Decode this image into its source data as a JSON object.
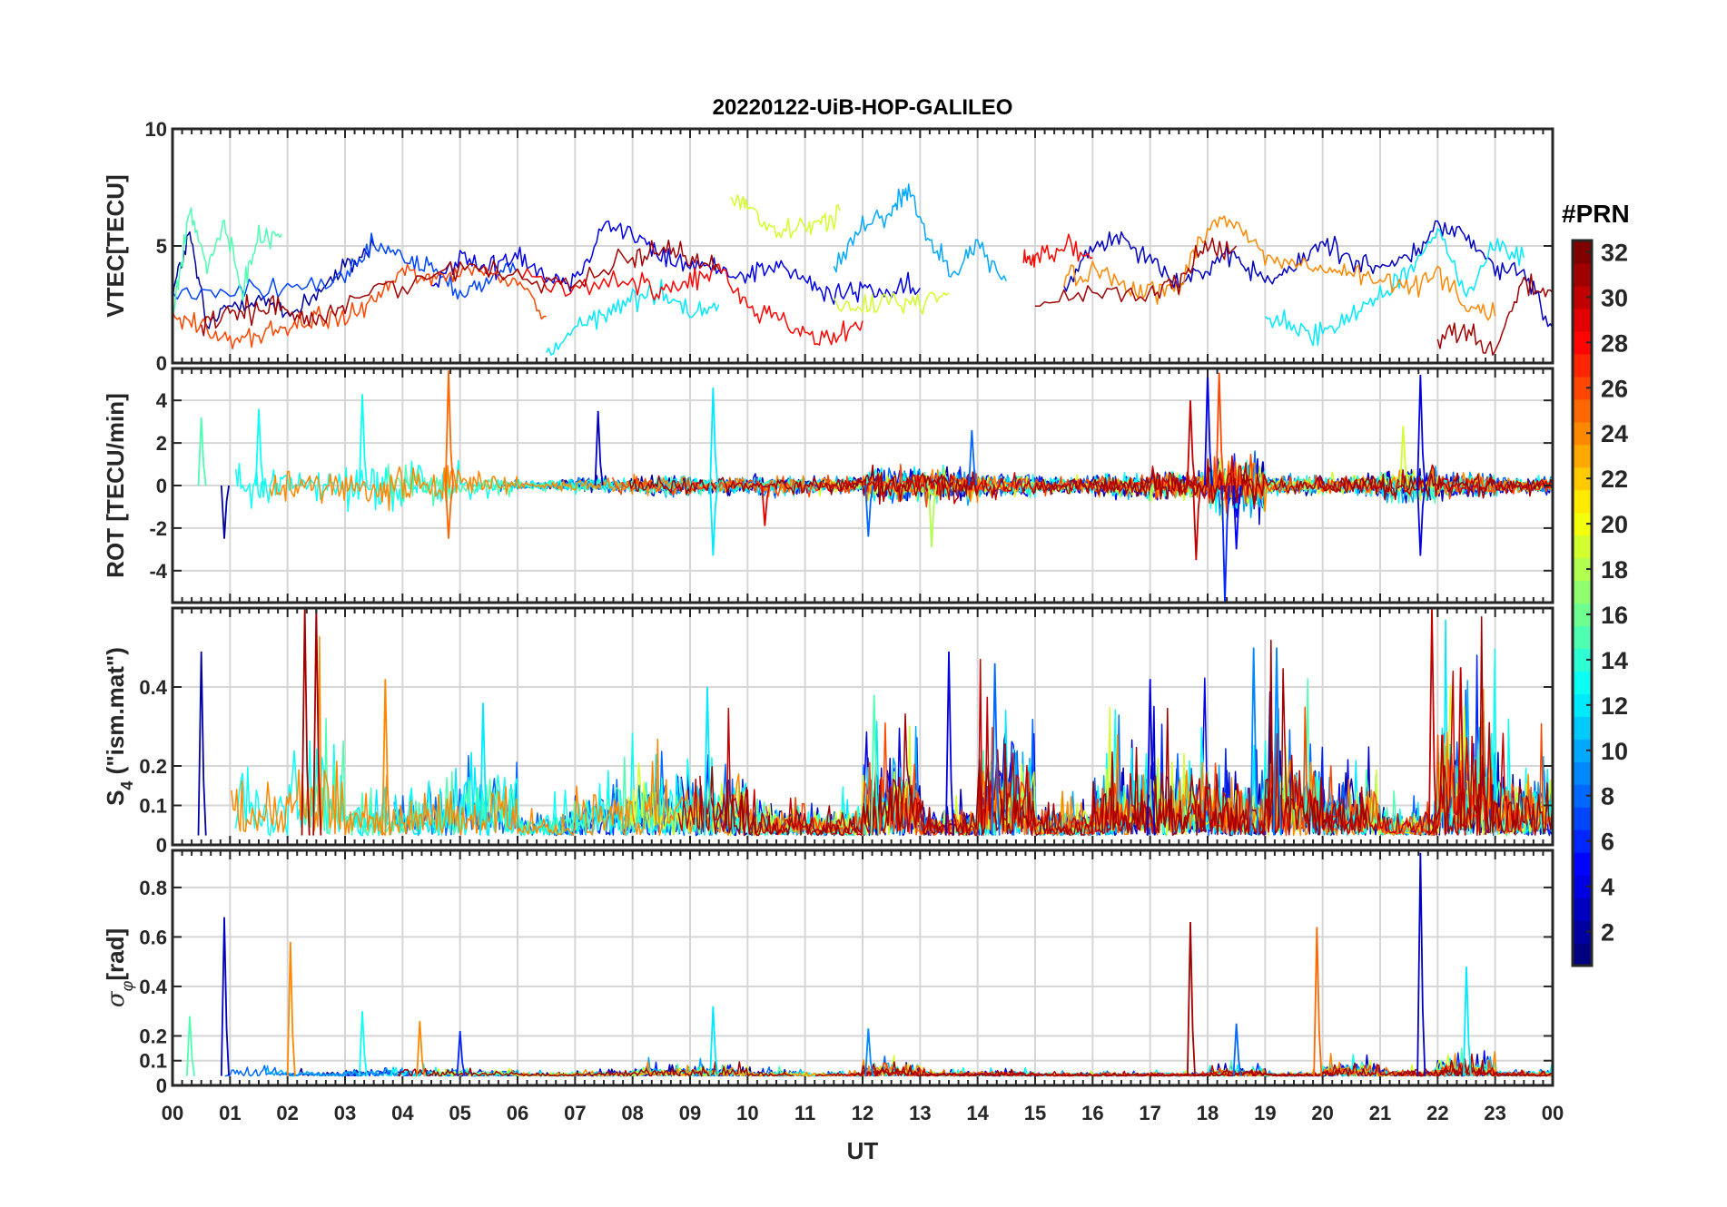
{
  "chart_data": {
    "type": "line",
    "title": "20220122-UiB-HOP-GALILEO",
    "xlabel": "UT",
    "xlim": [
      0,
      24
    ],
    "xticks": [
      0,
      1,
      2,
      3,
      4,
      5,
      6,
      7,
      8,
      9,
      10,
      11,
      12,
      13,
      14,
      15,
      16,
      17,
      18,
      19,
      20,
      21,
      22,
      23,
      24
    ],
    "xtick_labels": [
      "00",
      "01",
      "02",
      "03",
      "04",
      "05",
      "06",
      "07",
      "08",
      "09",
      "10",
      "11",
      "12",
      "13",
      "14",
      "15",
      "16",
      "17",
      "18",
      "19",
      "20",
      "21",
      "22",
      "23",
      "00"
    ],
    "grid": true,
    "colorbar": {
      "label": "#PRN",
      "range": [
        1,
        32
      ],
      "ticks": [
        2,
        4,
        6,
        8,
        10,
        12,
        14,
        16,
        18,
        20,
        22,
        24,
        26,
        28,
        30,
        32
      ],
      "colormap": "jet"
    },
    "panels": [
      {
        "name": "vtec",
        "ylabel": "VTEC[TECU]",
        "ylim": [
          0,
          10
        ],
        "yticks": [
          0,
          5,
          10
        ],
        "ytick_labels": [
          "0",
          "5",
          "10"
        ],
        "series": [
          {
            "prn": 2,
            "x": [
              0,
              0.3,
              0.6,
              1,
              1.5,
              2,
              2.5,
              3,
              3.5
            ],
            "y": [
              3,
              5.5,
              1.5,
              2.5,
              2.8,
              2,
              3,
              4,
              5
            ]
          },
          {
            "prn": 7,
            "x": [
              0,
              1,
              2,
              3,
              3.5,
              4,
              4.5,
              5,
              5.5,
              6
            ],
            "y": [
              3,
              3,
              3.2,
              3.5,
              5,
              4.5,
              4,
              3,
              3.5,
              4
            ]
          },
          {
            "prn": 4,
            "x": [
              4.5,
              5,
              5.5,
              6,
              6.5,
              7,
              7.5,
              8,
              8.5,
              9,
              9.5,
              10,
              10.5,
              11,
              11.5,
              12,
              12.5,
              13
            ],
            "y": [
              3.5,
              4.5,
              4,
              4.8,
              3.7,
              3.5,
              6,
              5.5,
              4.5,
              4.2,
              4,
              3.8,
              4.2,
              3.5,
              2.8,
              3.2,
              3,
              3.2
            ]
          },
          {
            "prn": 3,
            "x": [
              15.5,
              16,
              16.5,
              17,
              17.5,
              18,
              18.5,
              19,
              19.5,
              20,
              20.5,
              21,
              21.5,
              22,
              22.5,
              23,
              23.5,
              24
            ],
            "y": [
              3,
              5,
              5.5,
              4.5,
              3.5,
              4,
              4.5,
              3.5,
              4,
              5.2,
              4.5,
              4,
              4.5,
              5.8,
              5.5,
              4,
              3.8,
              1.5
            ]
          },
          {
            "prn": 10,
            "x": [
              11.5,
              12,
              12.5,
              12.8,
              13.2,
              13.6,
              14,
              14.5
            ],
            "y": [
              4,
              6,
              6.5,
              7.5,
              5,
              4,
              5,
              3.5
            ]
          },
          {
            "prn": 12,
            "x": [
              6.5,
              7,
              7.5,
              8,
              8.5,
              9,
              9.5
            ],
            "y": [
              0.3,
              1.5,
              2,
              2.8,
              3,
              2.2,
              2.5
            ]
          },
          {
            "prn": 12,
            "x": [
              19,
              19.5,
              20,
              20.5,
              21,
              21.5,
              22,
              22.5,
              23,
              23.5
            ],
            "y": [
              2,
              1.5,
              1.2,
              2,
              3,
              4,
              5.5,
              3,
              5,
              4.5
            ]
          },
          {
            "prn": 19,
            "x": [
              9.7,
              10,
              10.5,
              11,
              11.3,
              11.6
            ],
            "y": [
              7,
              6.8,
              5.5,
              5.8,
              6,
              6.5
            ]
          },
          {
            "prn": 19,
            "x": [
              11.5,
              12,
              12.5,
              13,
              13.5
            ],
            "y": [
              2.5,
              2.2,
              2.8,
              2.5,
              3
            ]
          },
          {
            "prn": 15,
            "x": [
              0,
              0.3,
              0.6,
              0.9,
              1.2,
              1.5,
              1.9
            ],
            "y": [
              2,
              6.5,
              4,
              6,
              3,
              5.5,
              5.5
            ]
          },
          {
            "prn": 26,
            "x": [
              0,
              0.5,
              1,
              1.5,
              2,
              2.5,
              3,
              3.5,
              4,
              4.5,
              5,
              5.5,
              6,
              6.5
            ],
            "y": [
              2,
              1.5,
              1,
              1.2,
              1.5,
              1.8,
              2,
              2.5,
              4,
              3.5,
              4,
              3.8,
              3.5,
              2
            ]
          },
          {
            "prn": 24,
            "x": [
              15.5,
              16,
              16.5,
              17,
              17.5,
              18,
              18.5,
              19,
              19.5,
              20,
              20.5,
              21,
              21.5,
              22,
              22.5,
              23
            ],
            "y": [
              3.5,
              4,
              3.5,
              3,
              3.2,
              6,
              6,
              4.5,
              4.2,
              4,
              3.8,
              3.5,
              3.2,
              4,
              2.5,
              2
            ]
          },
          {
            "prn": 28,
            "x": [
              6,
              7,
              8,
              8.5,
              9,
              9.5,
              10,
              10.5,
              11,
              11.5,
              12
            ],
            "y": [
              4,
              3,
              3.5,
              3,
              3.5,
              4,
              2.5,
              2,
              1.2,
              1,
              1.8
            ]
          },
          {
            "prn": 28,
            "x": [
              14.8,
              15,
              15.5,
              16
            ],
            "y": [
              4.5,
              4.5,
              5,
              4.5
            ]
          },
          {
            "prn": 31,
            "x": [
              0.5,
              1,
              1.5,
              2,
              2.5,
              3,
              4,
              5,
              6,
              7,
              8,
              8.5,
              9,
              9.5
            ],
            "y": [
              1.5,
              2,
              2.4,
              2.3,
              1.8,
              2.5,
              3.5,
              4,
              3.8,
              3.5,
              4.5,
              5,
              4.5,
              4
            ]
          },
          {
            "prn": 31,
            "x": [
              15,
              16,
              17,
              17.5,
              18,
              18.5
            ],
            "y": [
              2.5,
              3,
              3,
              3.5,
              5,
              5
            ]
          },
          {
            "prn": 31,
            "x": [
              22,
              22.5,
              23,
              23.5,
              24
            ],
            "y": [
              1,
              1.5,
              0.5,
              3.5,
              3
            ]
          }
        ]
      },
      {
        "name": "rot",
        "ylabel": "ROT [TECU/min]",
        "ylim": [
          -5.5,
          5.5
        ],
        "yticks": [
          -4,
          -2,
          0,
          2,
          4
        ],
        "ytick_labels": [
          "-4",
          "-2",
          "0",
          "2",
          "4"
        ],
        "hourly_amplitude": [
          1.5,
          1.2,
          0.8,
          1.2,
          1.2,
          0.6,
          0.3,
          0.4,
          0.5,
          0.4,
          0.5,
          0.4,
          0.8,
          0.8,
          0.6,
          0.4,
          0.6,
          0.7,
          1.5,
          0.5,
          0.5,
          0.8,
          0.6,
          0.4
        ],
        "peaks": [
          [
            0.5,
            3.2,
            15
          ],
          [
            0.9,
            -2.5,
            2
          ],
          [
            1.5,
            3.6,
            13
          ],
          [
            3.3,
            4.3,
            13
          ],
          [
            4.8,
            5.4,
            25
          ],
          [
            4.8,
            -2.5,
            25
          ],
          [
            7.4,
            3.5,
            3
          ],
          [
            9.4,
            4.6,
            12
          ],
          [
            9.4,
            -3.3,
            12
          ],
          [
            10.3,
            -1.9,
            29
          ],
          [
            12.1,
            -2.4,
            8
          ],
          [
            13.2,
            -2.9,
            18
          ],
          [
            13.9,
            2.6,
            8
          ],
          [
            17.7,
            4,
            30
          ],
          [
            17.8,
            -3.5,
            30
          ],
          [
            18.0,
            5.3,
            4
          ],
          [
            18.3,
            -5.5,
            6
          ],
          [
            18.2,
            5.3,
            26
          ],
          [
            18.5,
            -3,
            5
          ],
          [
            21.7,
            5.2,
            4
          ],
          [
            21.7,
            -3.3,
            4
          ],
          [
            21.4,
            2.8,
            19
          ]
        ]
      },
      {
        "name": "s4",
        "ylabel": "S",
        "ylabel_sub": "4",
        "ylabel_suffix": " (\"ism.mat\")",
        "ylim": [
          0,
          0.6
        ],
        "yticks": [
          0,
          0.1,
          0.2,
          0.4
        ],
        "ytick_labels": [
          "0",
          "0.1",
          "0.2",
          "0.4"
        ],
        "hourly_amplitude": [
          0.25,
          0.3,
          0.45,
          0.2,
          0.25,
          0.3,
          0.1,
          0.2,
          0.25,
          0.25,
          0.12,
          0.1,
          0.3,
          0.1,
          0.35,
          0.1,
          0.25,
          0.3,
          0.2,
          0.35,
          0.2,
          0.1,
          0.45,
          0.25
        ],
        "peaks": [
          [
            0.5,
            0.49,
            2
          ],
          [
            2.3,
            0.6,
            31
          ],
          [
            2.5,
            0.6,
            31
          ],
          [
            3.7,
            0.42,
            24
          ],
          [
            5.4,
            0.36,
            12
          ],
          [
            9.3,
            0.4,
            12
          ],
          [
            12.2,
            0.38,
            15
          ],
          [
            13.5,
            0.49,
            4
          ],
          [
            14.3,
            0.46,
            8
          ],
          [
            17.0,
            0.42,
            4
          ],
          [
            18.8,
            0.5,
            9
          ],
          [
            19.2,
            0.5,
            9
          ],
          [
            21.9,
            0.6,
            30
          ],
          [
            22.4,
            0.45,
            30
          ]
        ]
      },
      {
        "name": "sigma_phi",
        "ylabel": "σ",
        "ylabel_sub": "φ",
        "ylabel_suffix": "[rad]",
        "ylim": [
          0,
          0.95
        ],
        "yticks": [
          0,
          0.1,
          0.2,
          0.4,
          0.6,
          0.8
        ],
        "ytick_labels": [
          "0",
          "0.1",
          "0.2",
          "0.4",
          "0.6",
          "0.8"
        ],
        "hourly_amplitude": [
          0.08,
          0.05,
          0.03,
          0.05,
          0.05,
          0.04,
          0.02,
          0.03,
          0.06,
          0.07,
          0.03,
          0.02,
          0.08,
          0.03,
          0.03,
          0.02,
          0.02,
          0.02,
          0.05,
          0.02,
          0.08,
          0.04,
          0.1,
          0.03
        ],
        "peaks": [
          [
            0.3,
            0.28,
            15
          ],
          [
            0.9,
            0.68,
            3
          ],
          [
            2.05,
            0.58,
            24
          ],
          [
            3.3,
            0.3,
            13
          ],
          [
            4.3,
            0.26,
            24
          ],
          [
            5.0,
            0.22,
            6
          ],
          [
            9.4,
            0.32,
            12
          ],
          [
            12.1,
            0.23,
            9
          ],
          [
            17.7,
            0.66,
            31
          ],
          [
            18.5,
            0.25,
            8
          ],
          [
            19.9,
            0.64,
            25
          ],
          [
            21.7,
            0.94,
            3
          ],
          [
            22.5,
            0.48,
            12
          ]
        ]
      }
    ]
  }
}
